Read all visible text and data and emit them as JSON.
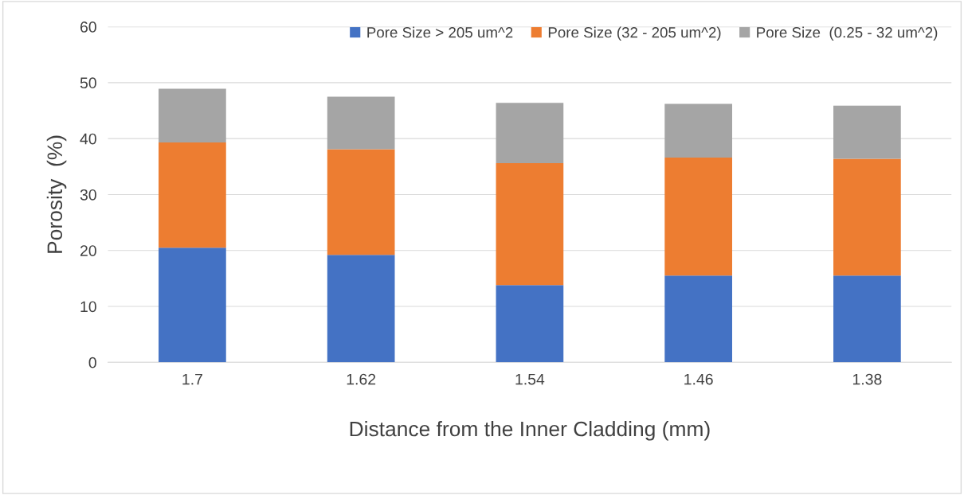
{
  "chart_data": {
    "type": "bar",
    "stacked": true,
    "xlabel": "Distance from the Inner Cladding (mm)",
    "ylabel": "Porosity  (%)",
    "categories": [
      "1.7",
      "1.62",
      "1.54",
      "1.46",
      "1.38"
    ],
    "series": [
      {
        "name": "Pore Size > 205 um^2",
        "color": "#4472c4",
        "values": [
          20.5,
          19.2,
          13.8,
          15.5,
          15.5
        ]
      },
      {
        "name": "Pore Size (32 - 205 um^2)",
        "color": "#ed7d31",
        "values": [
          18.8,
          18.9,
          21.8,
          21.1,
          20.9
        ]
      },
      {
        "name": "Pore Size  (0.25 - 32 um^2)",
        "color": "#a5a5a5",
        "values": [
          9.6,
          9.4,
          10.8,
          9.6,
          9.5
        ]
      }
    ],
    "ylim": [
      0,
      60
    ],
    "yticks": [
      0,
      10,
      20,
      30,
      40,
      50,
      60
    ],
    "grid": "y",
    "legend": "top right"
  }
}
